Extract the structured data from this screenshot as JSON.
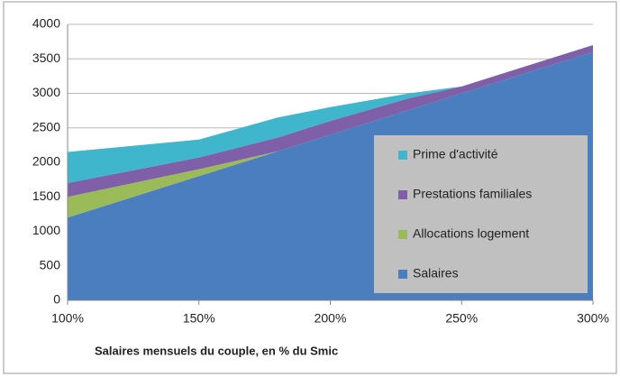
{
  "chart_data": {
    "type": "stacked_area",
    "x_label": "Salaires mensuels du couple, en % du Smic",
    "x": [
      100,
      150,
      180,
      200,
      230,
      250,
      300
    ],
    "series": [
      {
        "name": "Salaires",
        "color": "#4a7ebf",
        "values": [
          1200,
          1800,
          2160,
          2400,
          2760,
          3000,
          3600
        ]
      },
      {
        "name": "Allocations logement",
        "color": "#9bbb59",
        "values": [
          300,
          100,
          0,
          0,
          0,
          0,
          0
        ]
      },
      {
        "name": "Prestations familiales",
        "color": "#7f5fa8",
        "values": [
          200,
          170,
          200,
          200,
          170,
          100,
          100
        ]
      },
      {
        "name": "Prime d'activité",
        "color": "#3fb6cb",
        "values": [
          450,
          260,
          290,
          200,
          70,
          0,
          0
        ]
      }
    ],
    "xlim": [
      100,
      300
    ],
    "xticks": [
      {
        "value": 100,
        "label": "100%"
      },
      {
        "value": 150,
        "label": "150%"
      },
      {
        "value": 200,
        "label": "200%"
      },
      {
        "value": 250,
        "label": "250%"
      },
      {
        "value": 300,
        "label": "300%"
      }
    ],
    "ylim": [
      0,
      4000
    ],
    "yticks": [
      0,
      500,
      1000,
      1500,
      2000,
      2500,
      3000,
      3500,
      4000
    ],
    "grid": true,
    "legend": "lower right"
  }
}
